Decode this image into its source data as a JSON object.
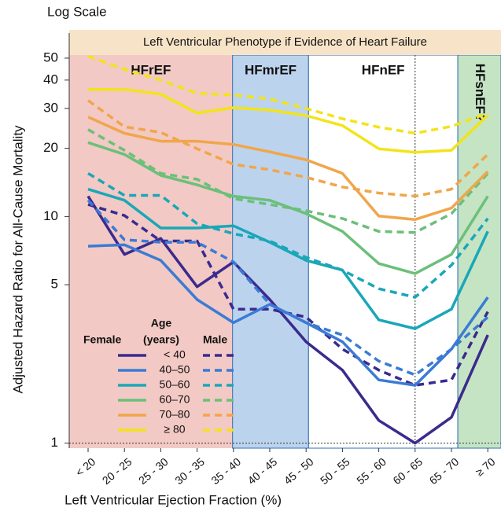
{
  "chart_data": {
    "type": "line",
    "log_scale": true,
    "scale_note": "Log Scale",
    "banner": "Left Ventricular Phenotype if Evidence of Heart Failure",
    "y_label": "Adjusted Hazard Ratio for All-Cause Mortality",
    "x_label": "Left Ventricular Ejection Fraction (%)",
    "categories": [
      "< 20",
      "20 - 25",
      "25 - 30",
      "30 - 35",
      "35 - 40",
      "40 - 45",
      "45 - 50",
      "50 - 55",
      "55 - 60",
      "60 - 65",
      "65 - 70",
      "≥ 70"
    ],
    "regions": [
      {
        "label": "HFrEF",
        "color": "#f2c9c4"
      },
      {
        "label": "HFmrEF",
        "color": "#bcd3ee"
      },
      {
        "label": "HFnEF",
        "color": "#ffffff"
      },
      {
        "label": "HFsnEF?",
        "color": "#c5e4c4"
      }
    ],
    "ylim": [
      0.95,
      55
    ],
    "yticks": [
      1,
      5,
      10,
      20,
      30,
      40,
      50
    ],
    "legend_title": "Age",
    "legend_female": "Female",
    "legend_unit": "(years)",
    "legend_male": "Male",
    "series": [
      {
        "name": "< 40",
        "color": "#3b2a8e",
        "values": [
          12.3,
          6.8,
          8.0,
          4.9,
          6.3,
          4.3,
          2.8,
          2.1,
          1.26,
          1.0,
          1.3,
          3.0
        ],
        "male_values": [
          11.3,
          10.1,
          7.8,
          7.8,
          3.9,
          3.9,
          3.6,
          2.6,
          2.1,
          1.8,
          1.9,
          3.8
        ]
      },
      {
        "name": "40–50",
        "color": "#3a7bd5",
        "values": [
          7.4,
          7.5,
          6.4,
          4.3,
          3.4,
          4.1,
          3.4,
          2.8,
          1.9,
          1.8,
          2.6,
          4.4
        ],
        "male_values": [
          11.8,
          7.9,
          7.7,
          7.7,
          6.3,
          4.1,
          3.4,
          3.0,
          2.3,
          2.0,
          2.6,
          3.6
        ]
      },
      {
        "name": "50–60",
        "color": "#1aa7b8",
        "values": [
          13.2,
          11.8,
          8.9,
          8.9,
          9.1,
          7.7,
          6.4,
          5.8,
          3.5,
          3.2,
          3.9,
          8.6
        ],
        "male_values": [
          15.5,
          12.4,
          12.4,
          9.3,
          8.4,
          7.8,
          6.6,
          5.8,
          4.8,
          4.4,
          6.1,
          9.8
        ]
      },
      {
        "name": "60–70",
        "color": "#6cbf7a",
        "values": [
          21.2,
          18.8,
          15.2,
          13.8,
          12.3,
          11.8,
          10.3,
          8.6,
          6.2,
          5.6,
          6.8,
          12.3
        ],
        "male_values": [
          24.2,
          19.6,
          15.5,
          14.6,
          12.0,
          11.3,
          10.6,
          9.8,
          8.6,
          8.5,
          10.3,
          15.5
        ]
      },
      {
        "name": "70–80",
        "color": "#f0a64a",
        "values": [
          27.5,
          23.3,
          21.5,
          21.5,
          20.8,
          19.3,
          17.8,
          15.5,
          10.05,
          9.7,
          10.9,
          15.8
        ],
        "male_values": [
          32.5,
          24.9,
          23.5,
          19.9,
          17.0,
          16.1,
          14.9,
          13.5,
          12.7,
          12.3,
          13.2,
          18.8
        ]
      },
      {
        "name": "≥ 80",
        "color": "#f2e41a",
        "values": [
          36.4,
          36.4,
          34.7,
          28.6,
          30.2,
          29.5,
          27.9,
          25.2,
          19.9,
          19.2,
          19.6,
          28.0
        ],
        "male_values": [
          51,
          44.6,
          40,
          35,
          34.4,
          33,
          30,
          27,
          24.8,
          23.3,
          25,
          28.6
        ]
      }
    ]
  }
}
